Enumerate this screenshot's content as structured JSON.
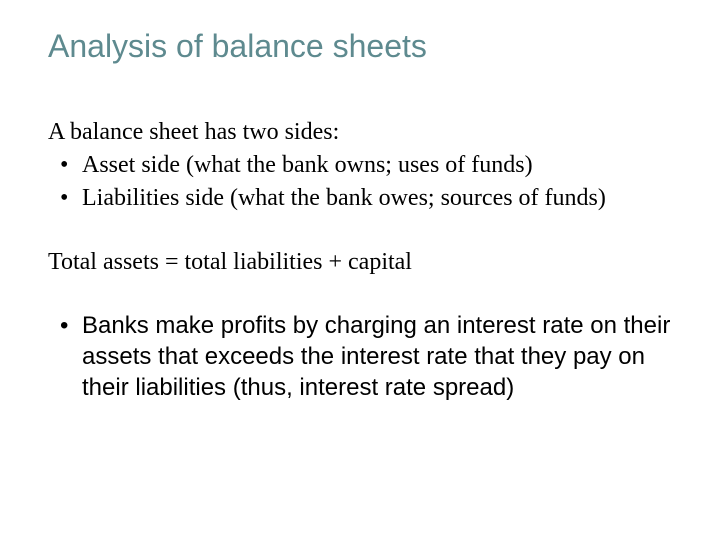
{
  "slide": {
    "title": "Analysis of balance sheets",
    "title_color": "#5e8a8f",
    "title_fontsize": 32,
    "body_fontsize": 24,
    "body_font_serif": "Times New Roman",
    "body_font_sans": "Arial",
    "intro": "A balance sheet has two sides:",
    "bullets": [
      "Asset side (what the bank owns; uses of funds)",
      "Liabilities side (what the bank owes; sources of funds)"
    ],
    "equation": "Total assets = total liabilities + capital",
    "profit_bullet": "Banks make profits by charging an interest rate on their assets that exceeds the interest rate that they pay on their liabilities (thus, interest rate spread)",
    "background_color": "#ffffff",
    "text_color": "#000000"
  }
}
